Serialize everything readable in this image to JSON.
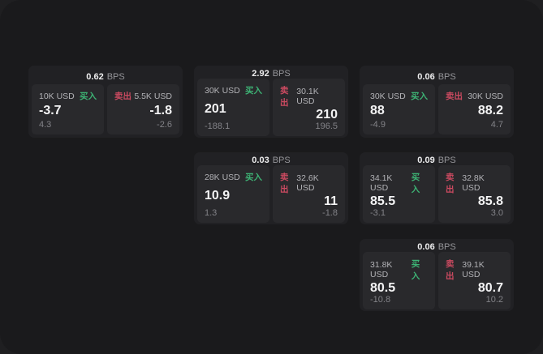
{
  "page": {
    "outer_bg": "#1f1f21",
    "panel_bg": "#1a1a1c",
    "card_bg": "#212124",
    "tile_bg": "#29292c",
    "buy_color": "#3db274",
    "sell_color": "#cb4a60",
    "bps_unit": "BPS",
    "buy_label": "买入",
    "sell_label": "卖出"
  },
  "cards": [
    {
      "bps": "0.62",
      "buy": {
        "size": "10K USD",
        "price": "-3.7",
        "delta": "4.3"
      },
      "sell": {
        "size": "5.5K USD",
        "price": "-1.8",
        "delta": "-2.6"
      }
    },
    {
      "bps": "2.92",
      "buy": {
        "size": "30K USD",
        "price": "201",
        "delta": "-188.1"
      },
      "sell": {
        "size": "30.1K USD",
        "price": "210",
        "delta": "196.5"
      }
    },
    {
      "bps": "0.06",
      "buy": {
        "size": "30K USD",
        "price": "88",
        "delta": "-4.9"
      },
      "sell": {
        "size": "30K USD",
        "price": "88.2",
        "delta": "4.7"
      }
    },
    {
      "bps": "0.03",
      "buy": {
        "size": "28K USD",
        "price": "10.9",
        "delta": "1.3"
      },
      "sell": {
        "size": "32.6K USD",
        "price": "11",
        "delta": "-1.8"
      }
    },
    {
      "bps": "0.09",
      "buy": {
        "size": "34.1K USD",
        "price": "85.5",
        "delta": "-3.1"
      },
      "sell": {
        "size": "32.8K USD",
        "price": "85.8",
        "delta": "3.0"
      }
    },
    {
      "bps": "0.06",
      "buy": {
        "size": "31.8K USD",
        "price": "80.5",
        "delta": "-10.8"
      },
      "sell": {
        "size": "39.1K USD",
        "price": "80.7",
        "delta": "10.2"
      }
    }
  ]
}
